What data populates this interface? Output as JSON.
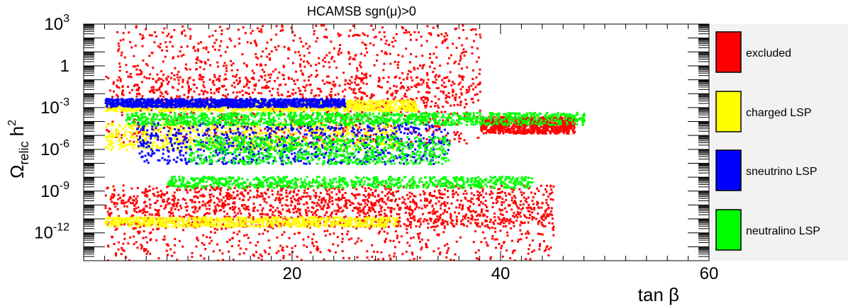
{
  "chart_data": {
    "type": "scatter",
    "title": "HCAMSB    sgn(μ)>0",
    "xlabel": "tan β",
    "ylabel_main": "Ω",
    "ylabel_sub": "relic",
    "ylabel_tail": " h",
    "ylabel_sup": "2",
    "xlim": [
      0,
      60
    ],
    "xticks": [
      {
        "value": 20,
        "label": "20"
      },
      {
        "value": 40,
        "label": "40"
      },
      {
        "value": 60,
        "label": "60"
      }
    ],
    "yscale": "log",
    "ylim_exp": [
      -14,
      3
    ],
    "yticks": [
      {
        "exp": 3,
        "base": "10",
        "sup": "3"
      },
      {
        "exp": 0,
        "base": "1",
        "sup": ""
      },
      {
        "exp": -3,
        "base": "10",
        "sup": "-3"
      },
      {
        "exp": -6,
        "base": "10",
        "sup": "-6"
      },
      {
        "exp": -9,
        "base": "10",
        "sup": "-9"
      },
      {
        "exp": -12,
        "base": "10",
        "sup": "-12"
      }
    ],
    "legend_position": "right",
    "series": [
      {
        "name": "excluded",
        "color": "#ff0000",
        "regions": [
          {
            "x": [
              2,
              45
            ],
            "log_omega": [
              -11.5,
              -8.5
            ]
          },
          {
            "x": [
              2,
              38
            ],
            "log_omega": [
              -5.5,
              -0.5
            ]
          },
          {
            "x": [
              2,
              45
            ],
            "log_omega": [
              -14,
              -9
            ]
          },
          {
            "x": [
              3,
              38
            ],
            "log_omega": [
              -3,
              3
            ]
          },
          {
            "x": [
              38,
              47
            ],
            "log_omega": [
              -4.8,
              -3.6
            ]
          }
        ]
      },
      {
        "name": "charged LSP",
        "color": "#ffff00",
        "regions": [
          {
            "x": [
              2,
              32
            ],
            "log_omega": [
              -3.2,
              -2.4
            ]
          },
          {
            "x": [
              2,
              30
            ],
            "log_omega": [
              -6,
              -4
            ]
          },
          {
            "x": [
              2,
              30
            ],
            "log_omega": [
              -11.5,
              -10.8
            ]
          }
        ]
      },
      {
        "name": "sneutrino LSP",
        "color": "#0000ff",
        "regions": [
          {
            "x": [
              2,
              25
            ],
            "log_omega": [
              -2.9,
              -2.3
            ]
          },
          {
            "x": [
              5,
              35
            ],
            "log_omega": [
              -7,
              -4
            ]
          }
        ]
      },
      {
        "name": "neutralino LSP",
        "color": "#00ff00",
        "regions": [
          {
            "x": [
              4,
              48
            ],
            "log_omega": [
              -4.2,
              -3.3
            ]
          },
          {
            "x": [
              8,
              43
            ],
            "log_omega": [
              -8.7,
              -7.9
            ]
          },
          {
            "x": [
              10,
              35
            ],
            "log_omega": [
              -7,
              -5
            ]
          }
        ]
      }
    ]
  }
}
